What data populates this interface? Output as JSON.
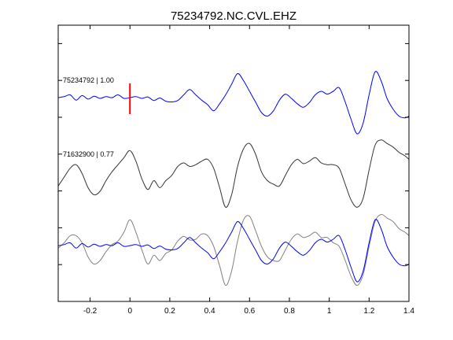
{
  "chart_data": {
    "type": "line",
    "title": "75234792.NC.CVL.EHZ",
    "xlim": [
      -0.36,
      1.4
    ],
    "x_ticks": [
      -0.2,
      0,
      0.2,
      0.4,
      0.6,
      0.8,
      1,
      1.2,
      1.4
    ],
    "x_tick_labels": [
      "-0.2",
      "0",
      "0.2",
      "0.4",
      "0.6",
      "0.8",
      "1",
      "1.2",
      "1.4"
    ],
    "grid": false,
    "colors": {
      "primary": "#0000ff",
      "secondary": "#333333",
      "overlay_gray": "#808080",
      "pick": "#ff0000",
      "axis": "#000000"
    },
    "pick_marker": {
      "x": 0,
      "color": "#ff0000"
    },
    "traces": [
      {
        "name": "75234792 | 1.00",
        "color": "#0000ff",
        "baseline_index": 0,
        "x": [
          -0.36,
          -0.33,
          -0.3,
          -0.27,
          -0.24,
          -0.21,
          -0.18,
          -0.15,
          -0.12,
          -0.09,
          -0.06,
          -0.03,
          0,
          0.03,
          0.06,
          0.09,
          0.12,
          0.15,
          0.18,
          0.21,
          0.24,
          0.27,
          0.3,
          0.33,
          0.36,
          0.39,
          0.42,
          0.45,
          0.48,
          0.51,
          0.54,
          0.57,
          0.6,
          0.63,
          0.66,
          0.69,
          0.72,
          0.75,
          0.78,
          0.81,
          0.84,
          0.87,
          0.9,
          0.93,
          0.96,
          0.99,
          1.02,
          1.05,
          1.08,
          1.11,
          1.14,
          1.17,
          1.2,
          1.23,
          1.26,
          1.29,
          1.32,
          1.35,
          1.38,
          1.4
        ],
        "y": [
          0.02,
          0.05,
          0.1,
          -0.05,
          0.08,
          -0.02,
          0.06,
          0,
          0.05,
          0.02,
          0.1,
          0,
          0.02,
          0.05,
          0,
          0.04,
          -0.06,
          0.01,
          -0.08,
          -0.1,
          -0.06,
          0.1,
          0.25,
          0.1,
          -0.05,
          -0.18,
          -0.35,
          -0.15,
          0.1,
          0.4,
          0.7,
          0.5,
          0.2,
          -0.1,
          -0.4,
          -0.5,
          -0.35,
          -0.05,
          0.12,
          0,
          -0.15,
          -0.25,
          -0.12,
          0.1,
          0.2,
          0.12,
          0.2,
          0.3,
          -0.1,
          -0.6,
          -1.0,
          -0.7,
          0.1,
          0.75,
          0.5,
          0,
          -0.3,
          -0.5,
          -0.55,
          -0.5
        ]
      },
      {
        "name": "71632900 | 0.77",
        "color": "#333333",
        "baseline_index": 1,
        "x": [
          -0.36,
          -0.33,
          -0.3,
          -0.27,
          -0.24,
          -0.21,
          -0.18,
          -0.15,
          -0.12,
          -0.09,
          -0.06,
          -0.03,
          0,
          0.03,
          0.06,
          0.09,
          0.12,
          0.15,
          0.18,
          0.21,
          0.24,
          0.27,
          0.3,
          0.33,
          0.36,
          0.39,
          0.42,
          0.45,
          0.48,
          0.51,
          0.54,
          0.57,
          0.6,
          0.63,
          0.66,
          0.69,
          0.72,
          0.75,
          0.78,
          0.81,
          0.84,
          0.87,
          0.9,
          0.93,
          0.96,
          0.99,
          1.02,
          1.05,
          1.08,
          1.11,
          1.14,
          1.17,
          1.2,
          1.23,
          1.26,
          1.29,
          1.32,
          1.35,
          1.38,
          1.4
        ],
        "y": [
          -0.45,
          -0.2,
          0.05,
          0.15,
          -0.1,
          -0.5,
          -0.7,
          -0.6,
          -0.3,
          -0.05,
          0.15,
          0.35,
          0.55,
          0.25,
          -0.25,
          -0.55,
          -0.3,
          -0.5,
          -0.3,
          -0.15,
          0.1,
          0.2,
          0.1,
          0.15,
          0.25,
          0.3,
          0.05,
          -0.5,
          -1.05,
          -0.7,
          0.1,
          0.6,
          0.75,
          0.45,
          -0.05,
          -0.3,
          -0.4,
          -0.45,
          -0.15,
          0.15,
          0.3,
          0.18,
          0.25,
          0.35,
          0.2,
          0.15,
          0.15,
          0.05,
          -0.4,
          -0.85,
          -1.05,
          -0.8,
          0,
          0.7,
          0.85,
          0.75,
          0.65,
          0.5,
          0.4,
          0.3
        ]
      },
      {
        "name": "",
        "color": "#808080",
        "baseline_index": 2,
        "x": [
          -0.36,
          -0.33,
          -0.3,
          -0.27,
          -0.24,
          -0.21,
          -0.18,
          -0.15,
          -0.12,
          -0.09,
          -0.06,
          -0.03,
          0,
          0.03,
          0.06,
          0.09,
          0.12,
          0.15,
          0.18,
          0.21,
          0.24,
          0.27,
          0.3,
          0.33,
          0.36,
          0.39,
          0.42,
          0.45,
          0.48,
          0.51,
          0.54,
          0.57,
          0.6,
          0.63,
          0.66,
          0.69,
          0.72,
          0.75,
          0.78,
          0.81,
          0.84,
          0.87,
          0.9,
          0.93,
          0.96,
          0.99,
          1.02,
          1.05,
          1.08,
          1.11,
          1.14,
          1.17,
          1.2,
          1.23,
          1.26,
          1.29,
          1.32,
          1.35,
          1.38,
          1.4
        ],
        "y": [
          -0.05,
          0.1,
          0.3,
          0.3,
          0.1,
          -0.3,
          -0.5,
          -0.4,
          -0.15,
          0.05,
          0.15,
          0.4,
          0.75,
          0.4,
          -0.1,
          -0.5,
          -0.25,
          -0.4,
          -0.2,
          -0.1,
          0.15,
          0.28,
          0.18,
          0.2,
          0.35,
          0.3,
          0,
          -0.55,
          -1.1,
          -0.7,
          0.15,
          0.75,
          0.85,
          0.45,
          0,
          -0.3,
          -0.4,
          -0.4,
          -0.1,
          0.2,
          0.35,
          0.25,
          0.3,
          0.4,
          0.25,
          0.25,
          0.1,
          0,
          -0.4,
          -0.85,
          -1.1,
          -0.8,
          0,
          0.7,
          0.9,
          0.8,
          0.7,
          0.5,
          0.4,
          0.3
        ]
      },
      {
        "name": "",
        "color": "#0000ff",
        "baseline_index": 2,
        "x": [
          -0.36,
          -0.33,
          -0.3,
          -0.27,
          -0.24,
          -0.21,
          -0.18,
          -0.15,
          -0.12,
          -0.09,
          -0.06,
          -0.03,
          0,
          0.03,
          0.06,
          0.09,
          0.12,
          0.15,
          0.18,
          0.21,
          0.24,
          0.27,
          0.3,
          0.33,
          0.36,
          0.39,
          0.42,
          0.45,
          0.48,
          0.51,
          0.54,
          0.57,
          0.6,
          0.63,
          0.66,
          0.69,
          0.72,
          0.75,
          0.78,
          0.81,
          0.84,
          0.87,
          0.9,
          0.93,
          0.96,
          0.99,
          1.02,
          1.05,
          1.08,
          1.11,
          1.14,
          1.17,
          1.2,
          1.23,
          1.26,
          1.29,
          1.32,
          1.35,
          1.38,
          1.4
        ],
        "y": [
          0.02,
          0.05,
          0.1,
          -0.05,
          0.08,
          -0.02,
          0.06,
          0,
          0.05,
          0.02,
          0.1,
          0,
          0.02,
          0.05,
          0,
          0.04,
          -0.06,
          0.01,
          -0.08,
          -0.1,
          -0.06,
          0.1,
          0.25,
          0.1,
          -0.05,
          -0.18,
          -0.35,
          -0.15,
          0.1,
          0.4,
          0.7,
          0.5,
          0.2,
          -0.1,
          -0.4,
          -0.5,
          -0.35,
          -0.05,
          0.12,
          0,
          -0.15,
          -0.25,
          -0.12,
          0.1,
          0.2,
          0.12,
          0.2,
          0.3,
          -0.1,
          -0.6,
          -1.0,
          -0.7,
          0.1,
          0.75,
          0.5,
          0,
          -0.3,
          -0.5,
          -0.55,
          -0.5
        ]
      }
    ]
  }
}
